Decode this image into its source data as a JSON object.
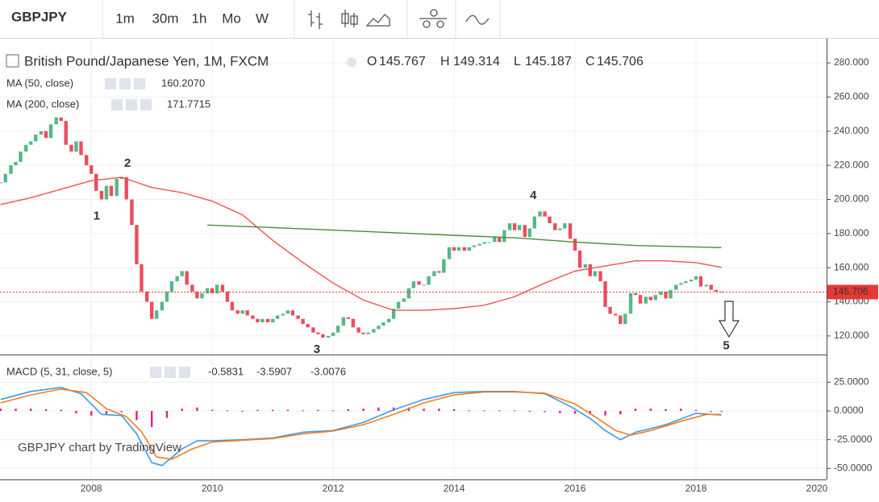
{
  "toolbar": {
    "symbol": "GBPJPY",
    "intervals": [
      "1m",
      "30m",
      "1h",
      "Mo",
      "W"
    ],
    "active": 3,
    "active_color": "#2196f3"
  },
  "chart_data": [
    {
      "type": "candlestick",
      "title": "British Pound/Japanese Yen, 1M, FXCM",
      "ohlc_letters": [
        "O",
        "H",
        "L",
        "C"
      ],
      "ohlc": [
        145.767,
        149.314,
        145.187,
        145.706
      ],
      "ohlc_color": "#e53935",
      "up_color": "#53b987",
      "down_color": "#eb4d5c",
      "x": [
        2006.5,
        2006.58,
        2006.67,
        2006.75,
        2006.83,
        2006.92,
        2007,
        2007.08,
        2007.17,
        2007.25,
        2007.33,
        2007.42,
        2007.5,
        2007.58,
        2007.67,
        2007.75,
        2007.83,
        2007.92,
        2008,
        2008.08,
        2008.17,
        2008.25,
        2008.33,
        2008.42,
        2008.5,
        2008.58,
        2008.67,
        2008.75,
        2008.83,
        2008.92,
        2009,
        2009.08,
        2009.17,
        2009.25,
        2009.33,
        2009.42,
        2009.5,
        2009.58,
        2009.67,
        2009.75,
        2009.83,
        2009.92,
        2010,
        2010.08,
        2010.17,
        2010.25,
        2010.33,
        2010.42,
        2010.5,
        2010.58,
        2010.67,
        2010.75,
        2010.83,
        2010.92,
        2011,
        2011.08,
        2011.17,
        2011.25,
        2011.33,
        2011.42,
        2011.5,
        2011.58,
        2011.67,
        2011.75,
        2011.83,
        2011.92,
        2012,
        2012.08,
        2012.17,
        2012.25,
        2012.33,
        2012.42,
        2012.5,
        2012.58,
        2012.67,
        2012.75,
        2012.83,
        2012.92,
        2013,
        2013.08,
        2013.17,
        2013.25,
        2013.33,
        2013.42,
        2013.5,
        2013.58,
        2013.67,
        2013.75,
        2013.83,
        2013.92,
        2014,
        2014.08,
        2014.17,
        2014.25,
        2014.33,
        2014.42,
        2014.5,
        2014.58,
        2014.67,
        2014.75,
        2014.83,
        2014.92,
        2015,
        2015.08,
        2015.17,
        2015.25,
        2015.33,
        2015.42,
        2015.5,
        2015.58,
        2015.67,
        2015.75,
        2015.83,
        2015.92,
        2016,
        2016.08,
        2016.17,
        2016.25,
        2016.33,
        2016.42,
        2016.5,
        2016.58,
        2016.67,
        2016.75,
        2016.83,
        2016.92,
        2017,
        2017.08,
        2017.17,
        2017.25,
        2017.33,
        2017.42,
        2017.5,
        2017.58,
        2017.67,
        2017.75,
        2017.83,
        2017.92,
        2018,
        2018.08,
        2018.17,
        2018.25,
        2018.33,
        2018.42
      ],
      "close": [
        210,
        215,
        220,
        222,
        228,
        232,
        234,
        238,
        240,
        236,
        244,
        248,
        246,
        232,
        228,
        234,
        226,
        220,
        215,
        205,
        200,
        208,
        202,
        212,
        213,
        200,
        185,
        162,
        146,
        140,
        130,
        135,
        140,
        146,
        152,
        155,
        158,
        150,
        146,
        142,
        145,
        148,
        145,
        150,
        146,
        140,
        135,
        133,
        135,
        132,
        130,
        128,
        130,
        128,
        130,
        132,
        133,
        135,
        132,
        130,
        127,
        125,
        122,
        121,
        119,
        120,
        122,
        126,
        131,
        130,
        125,
        122,
        121,
        122,
        124,
        126,
        128,
        130,
        136,
        140,
        142,
        148,
        152,
        150,
        150,
        155,
        158,
        157,
        165,
        172,
        170,
        172,
        170,
        172,
        173,
        174,
        175,
        175,
        178,
        175,
        182,
        186,
        182,
        185,
        178,
        183,
        190,
        193,
        190,
        186,
        182,
        183,
        186,
        177,
        170,
        160,
        162,
        155,
        158,
        152,
        137,
        133,
        132,
        127,
        133,
        145,
        144,
        139,
        143,
        141,
        144,
        146,
        142,
        147,
        150,
        151,
        152,
        153,
        155,
        149,
        150,
        147,
        146,
        145.706
      ],
      "overlays": [
        {
          "name": "MA (50, close)",
          "color": "#ef5350",
          "last": {
            "value": 160.207,
            "label": "160.2070"
          },
          "x": [
            2006.5,
            2007,
            2007.5,
            2008,
            2008.5,
            2009,
            2009.5,
            2010,
            2010.5,
            2011,
            2011.5,
            2012,
            2012.5,
            2013,
            2013.5,
            2014,
            2014.5,
            2015,
            2015.5,
            2016,
            2016.5,
            2017,
            2017.5,
            2018,
            2018.42
          ],
          "values": [
            197,
            201,
            206,
            211,
            213,
            207,
            204,
            199,
            191,
            176,
            163,
            151,
            141,
            135,
            135,
            136,
            138,
            143,
            151,
            158,
            161,
            164,
            164,
            163,
            160.207
          ]
        },
        {
          "name": "MA (200, close)",
          "color": "#4a8b3c",
          "last": 171.7715,
          "x": [
            2009.92,
            2011,
            2012,
            2013,
            2014,
            2015,
            2016,
            2017,
            2018.42
          ],
          "values": [
            185,
            183.5,
            182,
            180.5,
            179,
            177.5,
            175,
            173,
            171.7715
          ]
        }
      ],
      "annotations": [
        {
          "label": "1",
          "x": 2008.09,
          "y": 190
        },
        {
          "label": "2",
          "x": 2008.6,
          "y": 221
        },
        {
          "label": "3",
          "x": 2011.73,
          "y": 112
        },
        {
          "label": "4",
          "x": 2015.31,
          "y": 202
        },
        {
          "label": "5",
          "x": 2018.5,
          "y": 114
        }
      ],
      "xlim": [
        2006.49,
        2020.16
      ],
      "xticks": [
        2008,
        2010,
        2012,
        2014,
        2016,
        2018,
        2020
      ],
      "ylim": [
        109.1,
        294.2
      ],
      "yticks": [
        {
          "value": 120,
          "label": "120.000"
        },
        {
          "value": 140,
          "label": "140.000"
        },
        {
          "value": 160,
          "label": "160.000"
        },
        {
          "value": 180,
          "label": "180.000"
        },
        {
          "value": 200,
          "label": "200.000"
        },
        {
          "value": 220,
          "label": "220.000"
        },
        {
          "value": 240,
          "label": "240.000"
        },
        {
          "value": 260,
          "label": "260.000"
        },
        {
          "value": 280,
          "label": "280.000"
        }
      ],
      "grid": true
    },
    {
      "type": "macd",
      "title": "MACD (5, 31, close, 5)",
      "watermark": "GBPJPY chart by TradingView",
      "series": [
        {
          "kind": "histogram",
          "color": "#e0218a",
          "x": [
            2006.5,
            2006.75,
            2007,
            2007.25,
            2007.5,
            2007.75,
            2008,
            2008.25,
            2008.5,
            2008.75,
            2009,
            2009.25,
            2009.5,
            2009.75,
            2010,
            2010.25,
            2010.5,
            2010.75,
            2011,
            2011.25,
            2011.5,
            2011.75,
            2012,
            2012.25,
            2012.5,
            2012.75,
            2013,
            2013.25,
            2013.5,
            2013.75,
            2014,
            2014.25,
            2014.5,
            2014.75,
            2015,
            2015.25,
            2015.5,
            2015.75,
            2016,
            2016.25,
            2016.5,
            2016.75,
            2017,
            2017.25,
            2017.5,
            2017.75,
            2018,
            2018.25,
            2018.42
          ],
          "values": [
            2,
            2,
            2,
            1.5,
            1,
            -2,
            -4,
            -3,
            -1,
            -8,
            -14,
            -6,
            2,
            3,
            1,
            0.5,
            -0.5,
            1,
            1,
            1,
            0.5,
            1,
            0.5,
            1.5,
            2,
            3,
            3,
            3,
            2,
            2,
            1.5,
            0.5,
            0.5,
            0.5,
            0.5,
            0,
            -1,
            -2,
            -2.5,
            -3,
            -4,
            -3,
            2,
            2,
            1.5,
            2,
            1,
            -0.5,
            -0.5831
          ]
        },
        {
          "kind": "line",
          "color": "#3d9be9",
          "x": [
            2006.5,
            2007,
            2007.5,
            2007.83,
            2008.17,
            2008.5,
            2008.75,
            2009,
            2009.17,
            2009.5,
            2009.75,
            2010,
            2010.5,
            2011,
            2011.5,
            2012,
            2012.5,
            2013,
            2013.5,
            2014,
            2014.5,
            2015,
            2015.5,
            2015.92,
            2016.25,
            2016.5,
            2016.75,
            2017,
            2017.5,
            2018,
            2018.42
          ],
          "values": [
            10,
            17,
            20.5,
            15,
            -3,
            -4,
            -20,
            -45,
            -47.5,
            -33,
            -26,
            -26,
            -25,
            -23.5,
            -18.5,
            -17,
            -10,
            1,
            10,
            16,
            17,
            17,
            15,
            4,
            -6.5,
            -17,
            -25,
            -18.5,
            -12,
            -2,
            -3.5907
          ]
        },
        {
          "kind": "line",
          "color": "#f57c20",
          "x": [
            2006.5,
            2007,
            2007.5,
            2007.92,
            2008.25,
            2008.58,
            2008.83,
            2009.08,
            2009.33,
            2009.67,
            2010,
            2010.5,
            2011,
            2011.5,
            2012,
            2012.5,
            2013,
            2013.5,
            2014,
            2014.5,
            2015,
            2015.5,
            2016,
            2016.33,
            2016.67,
            2016.92,
            2017.25,
            2017.75,
            2018.17,
            2018.42
          ],
          "values": [
            7,
            14,
            19,
            16,
            2,
            -5,
            -18,
            -40,
            -42,
            -33,
            -27,
            -25.5,
            -24,
            -20,
            -17.5,
            -12,
            -3,
            7,
            14,
            16.5,
            16.5,
            15.5,
            6,
            -5,
            -17,
            -21,
            -17,
            -9,
            -3,
            -3.0076
          ]
        }
      ],
      "ylim": [
        -59.6,
        48.4
      ],
      "yticks": [
        {
          "value": 25,
          "label": "25.0000"
        },
        {
          "value": 0,
          "label": "0.0000"
        },
        {
          "value": -25,
          "label": "-25.0000"
        },
        {
          "value": -50,
          "label": "-50.0000"
        }
      ]
    }
  ]
}
